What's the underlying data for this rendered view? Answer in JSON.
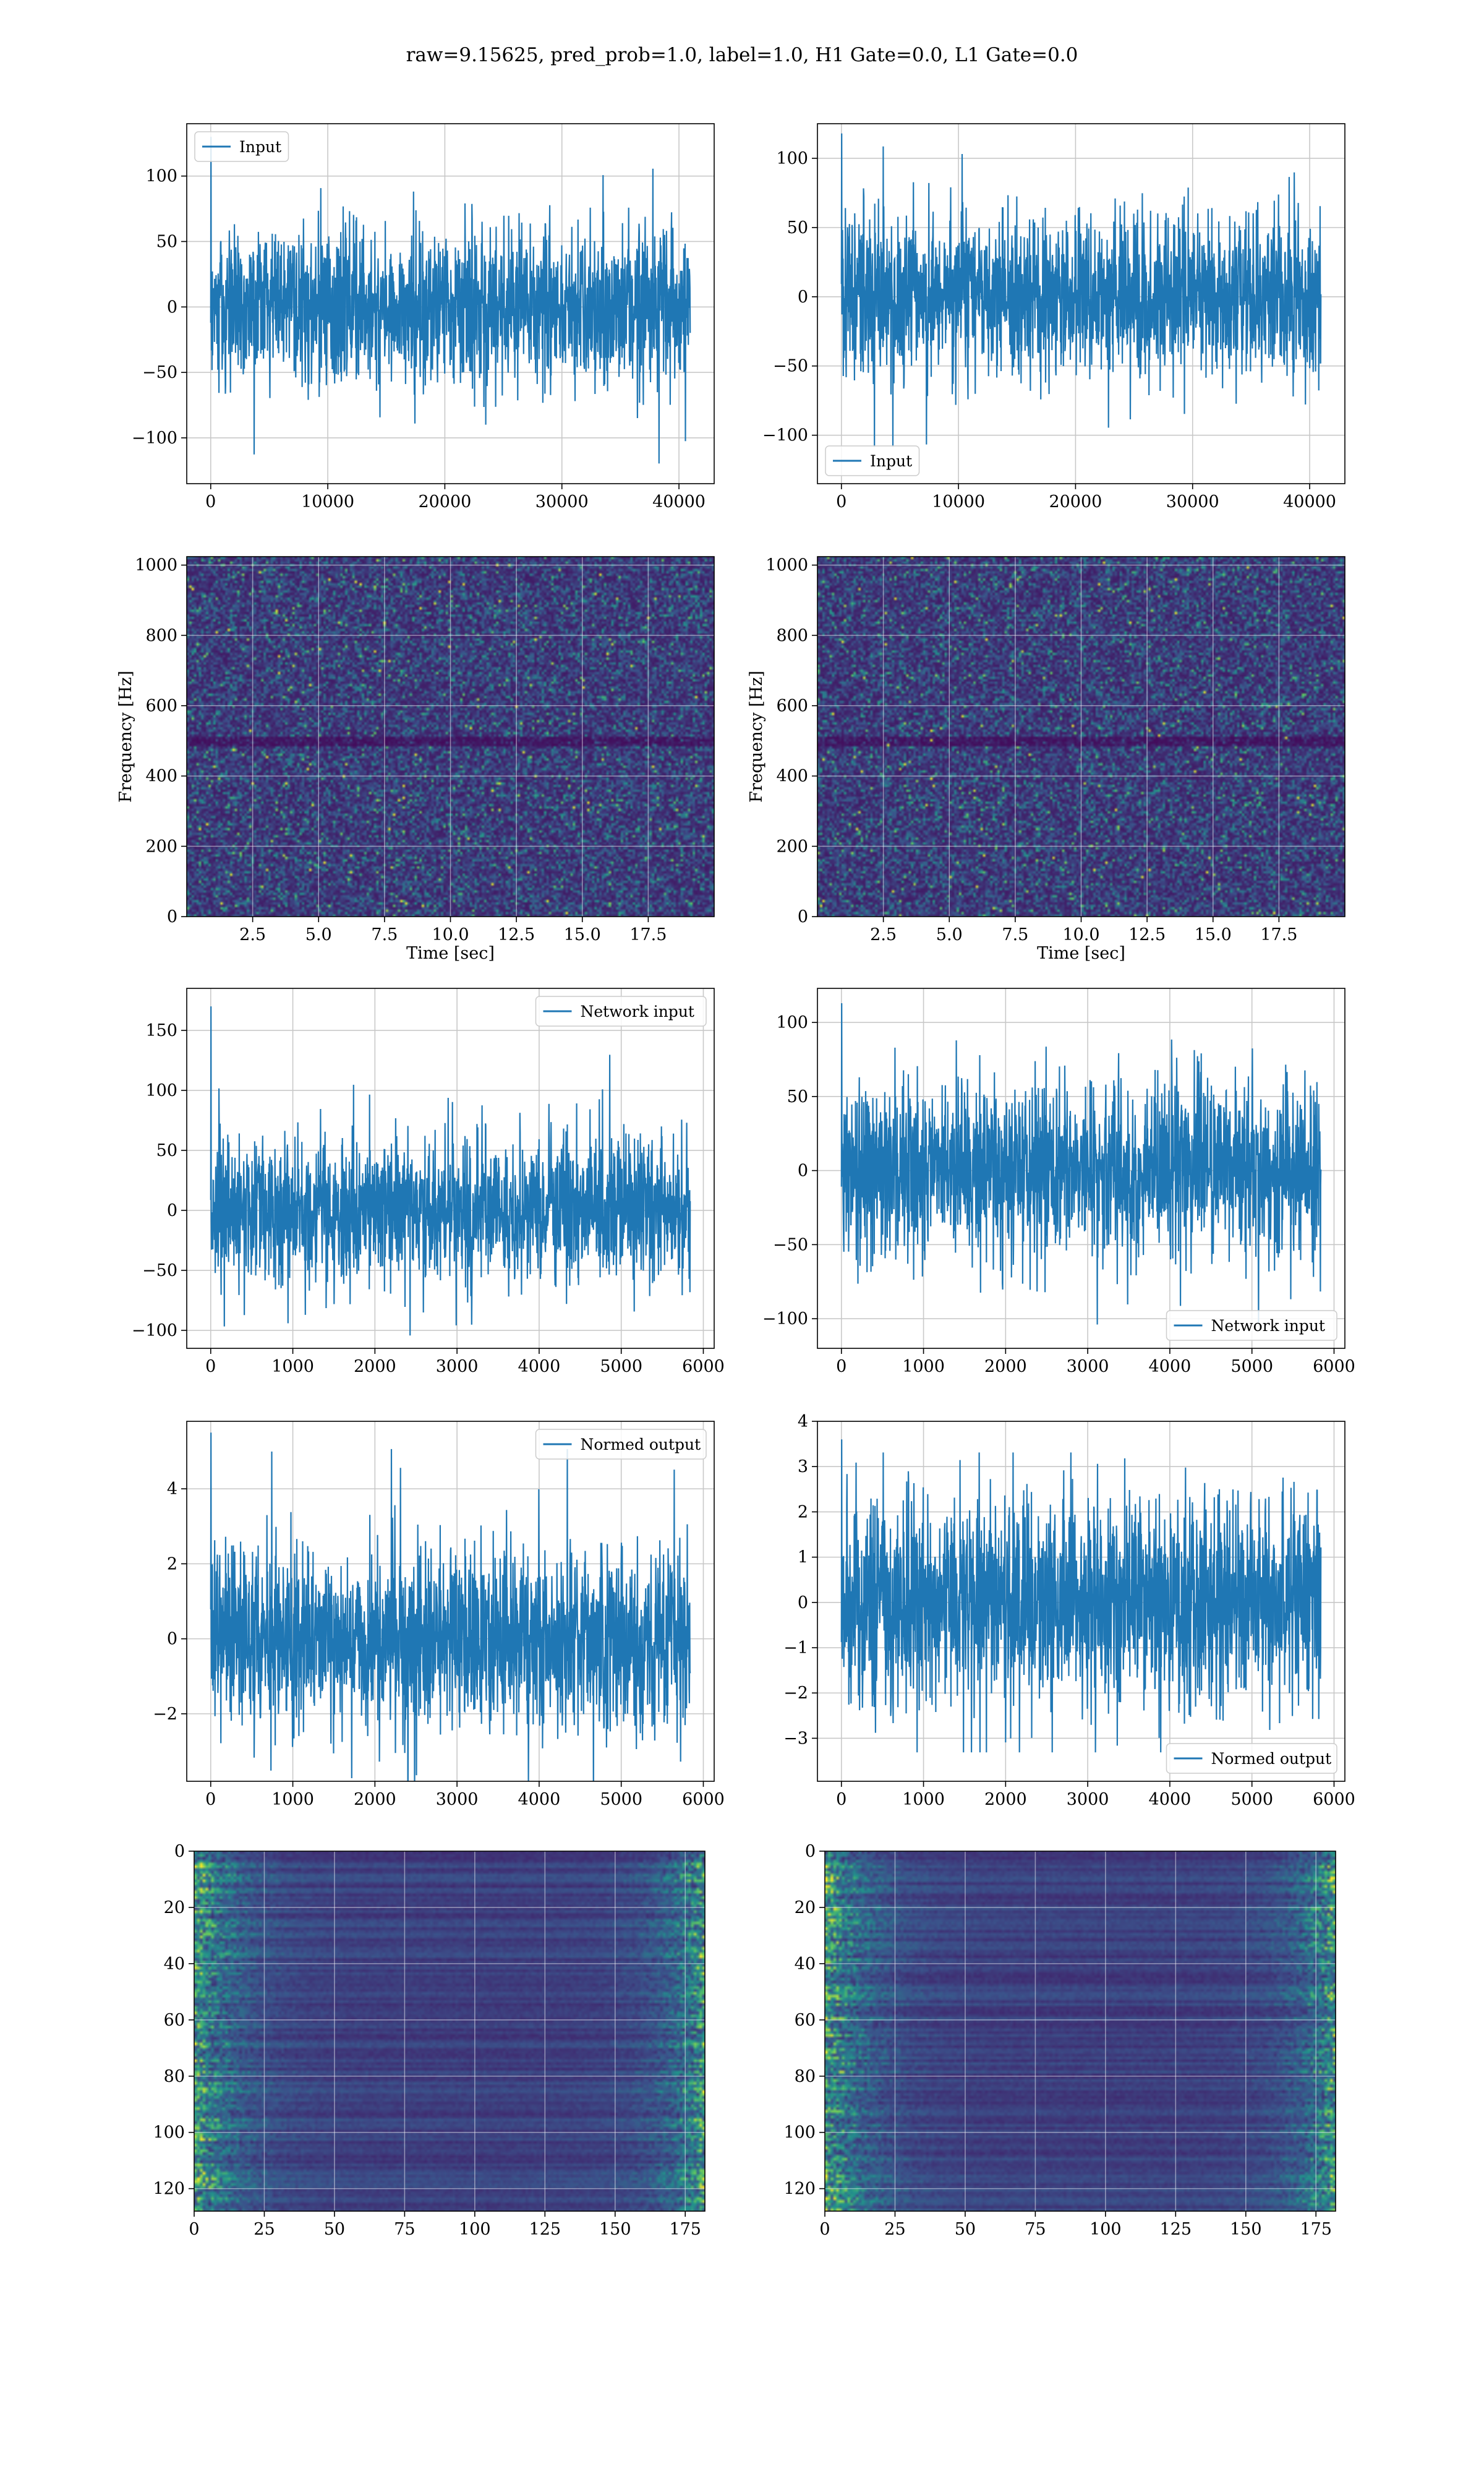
{
  "figure": {
    "suptitle": "raw=9.15625, pred_prob=1.0, label=1.0, H1 Gate=0.0, L1 Gate=0.0",
    "colors": {
      "series": "#1f77b4",
      "heatmap_low": "#440154",
      "heatmap_mid": "#21918c",
      "heatmap_high": "#fde725"
    }
  },
  "chart_data": [
    {
      "id": "input-h1",
      "type": "line",
      "title": "",
      "xlabel": "",
      "ylabel": "",
      "legend": [
        "Input"
      ],
      "legend_loc": "upper left",
      "series": [
        {
          "name": "Input",
          "n": 40960,
          "mean": 0,
          "std": 25,
          "peak": 130
        }
      ],
      "xlim": [
        -2048,
        43008
      ],
      "ylim": [
        -135,
        140
      ],
      "xticks": [
        0,
        10000,
        20000,
        30000,
        40000
      ],
      "xtick_labels": [
        "0",
        "10000",
        "20000",
        "30000",
        "40000"
      ],
      "yticks": [
        -100,
        -50,
        0,
        50,
        100
      ],
      "ytick_labels": [
        "−100",
        "−50",
        "0",
        "50",
        "100"
      ],
      "grid": true
    },
    {
      "id": "input-l1",
      "type": "line",
      "title": "",
      "xlabel": "",
      "ylabel": "",
      "legend": [
        "Input"
      ],
      "legend_loc": "lower left",
      "series": [
        {
          "name": "Input",
          "n": 40960,
          "mean": 0,
          "std": 25,
          "peak": 118
        }
      ],
      "xlim": [
        -2048,
        43008
      ],
      "ylim": [
        -135,
        125
      ],
      "xticks": [
        0,
        10000,
        20000,
        30000,
        40000
      ],
      "xtick_labels": [
        "0",
        "10000",
        "20000",
        "30000",
        "40000"
      ],
      "yticks": [
        -100,
        -50,
        0,
        50,
        100
      ],
      "ytick_labels": [
        "−100",
        "−50",
        "0",
        "50",
        "100"
      ],
      "grid": true
    },
    {
      "id": "spec-h1",
      "type": "heatmap",
      "title": "",
      "xlabel": "Time [sec]",
      "ylabel": "Frequency [Hz]",
      "xlim": [
        0,
        20
      ],
      "ylim": [
        0,
        1024
      ],
      "colormap": "viridis",
      "xticks": [
        2.5,
        5.0,
        7.5,
        10.0,
        12.5,
        15.0,
        17.5
      ],
      "xtick_labels": [
        "2.5",
        "5.0",
        "7.5",
        "10.0",
        "12.5",
        "15.0",
        "17.5"
      ],
      "yticks": [
        0,
        200,
        400,
        600,
        800,
        1000
      ],
      "ytick_labels": [
        "0",
        "200",
        "400",
        "600",
        "800",
        "1000"
      ],
      "grid": true
    },
    {
      "id": "spec-l1",
      "type": "heatmap",
      "title": "",
      "xlabel": "Time [sec]",
      "ylabel": "Frequency [Hz]",
      "xlim": [
        0,
        20
      ],
      "ylim": [
        0,
        1024
      ],
      "colormap": "viridis",
      "xticks": [
        2.5,
        5.0,
        7.5,
        10.0,
        12.5,
        15.0,
        17.5
      ],
      "xtick_labels": [
        "2.5",
        "5.0",
        "7.5",
        "10.0",
        "12.5",
        "15.0",
        "17.5"
      ],
      "yticks": [
        0,
        200,
        400,
        600,
        800,
        1000
      ],
      "ytick_labels": [
        "0",
        "200",
        "400",
        "600",
        "800",
        "1000"
      ],
      "grid": true
    },
    {
      "id": "netin-h1",
      "type": "line",
      "title": "",
      "xlabel": "",
      "ylabel": "",
      "legend": [
        "Network input"
      ],
      "legend_loc": "upper right",
      "series": [
        {
          "name": "Network input",
          "n": 5840,
          "mean": 0,
          "std": 25,
          "peak": 170
        }
      ],
      "xlim": [
        -292,
        6132
      ],
      "ylim": [
        -115,
        185
      ],
      "xticks": [
        0,
        1000,
        2000,
        3000,
        4000,
        5000,
        6000
      ],
      "xtick_labels": [
        "0",
        "1000",
        "2000",
        "3000",
        "4000",
        "5000",
        "6000"
      ],
      "yticks": [
        -100,
        -50,
        0,
        50,
        100,
        150
      ],
      "ytick_labels": [
        "−100",
        "−50",
        "0",
        "50",
        "100",
        "150"
      ],
      "grid": true
    },
    {
      "id": "netin-l1",
      "type": "line",
      "title": "",
      "xlabel": "",
      "ylabel": "",
      "legend": [
        "Network input"
      ],
      "legend_loc": "lower right",
      "series": [
        {
          "name": "Network input",
          "n": 5840,
          "mean": 0,
          "std": 25,
          "peak": 113
        }
      ],
      "xlim": [
        -292,
        6132
      ],
      "ylim": [
        -120,
        123
      ],
      "xticks": [
        0,
        1000,
        2000,
        3000,
        4000,
        5000,
        6000
      ],
      "xtick_labels": [
        "0",
        "1000",
        "2000",
        "3000",
        "4000",
        "5000",
        "6000"
      ],
      "yticks": [
        -100,
        -50,
        0,
        50,
        100
      ],
      "ytick_labels": [
        "−100",
        "−50",
        "0",
        "50",
        "100"
      ],
      "grid": true
    },
    {
      "id": "normed-h1",
      "type": "line",
      "title": "",
      "xlabel": "",
      "ylabel": "",
      "legend": [
        "Normed output"
      ],
      "legend_loc": "upper right",
      "series": [
        {
          "name": "Normed output",
          "n": 5840,
          "mean": 0,
          "std": 1,
          "peak": 5.5
        }
      ],
      "xlim": [
        -292,
        6132
      ],
      "ylim": [
        -3.8,
        5.8
      ],
      "xticks": [
        0,
        1000,
        2000,
        3000,
        4000,
        5000,
        6000
      ],
      "xtick_labels": [
        "0",
        "1000",
        "2000",
        "3000",
        "4000",
        "5000",
        "6000"
      ],
      "yticks": [
        -2,
        0,
        2,
        4
      ],
      "ytick_labels": [
        "−2",
        "0",
        "2",
        "4"
      ],
      "grid": true
    },
    {
      "id": "normed-l1",
      "type": "line",
      "title": "",
      "xlabel": "",
      "ylabel": "",
      "legend": [
        "Normed output"
      ],
      "legend_loc": "lower right",
      "series": [
        {
          "name": "Normed output",
          "n": 5840,
          "mean": 0,
          "std": 1,
          "peak": 3.6
        }
      ],
      "xlim": [
        -292,
        6132
      ],
      "ylim": [
        -3.95,
        4.0
      ],
      "xticks": [
        0,
        1000,
        2000,
        3000,
        4000,
        5000,
        6000
      ],
      "xtick_labels": [
        "0",
        "1000",
        "2000",
        "3000",
        "4000",
        "5000",
        "6000"
      ],
      "yticks": [
        -3,
        -2,
        -1,
        0,
        1,
        2,
        3,
        4
      ],
      "ytick_labels": [
        "−3",
        "−2",
        "−1",
        "0",
        "1",
        "2",
        "3",
        "4"
      ],
      "grid": true
    },
    {
      "id": "feat-h1",
      "type": "heatmap",
      "title": "",
      "xlabel": "",
      "ylabel": "",
      "xlim": [
        0,
        182
      ],
      "ylim": [
        128,
        0
      ],
      "colormap": "viridis",
      "xticks": [
        0,
        25,
        50,
        75,
        100,
        125,
        150,
        175
      ],
      "xtick_labels": [
        "0",
        "25",
        "50",
        "75",
        "100",
        "125",
        "150",
        "175"
      ],
      "yticks": [
        0,
        20,
        40,
        60,
        80,
        100,
        120
      ],
      "ytick_labels": [
        "0",
        "20",
        "40",
        "60",
        "80",
        "100",
        "120"
      ],
      "grid": true
    },
    {
      "id": "feat-l1",
      "type": "heatmap",
      "title": "",
      "xlabel": "",
      "ylabel": "",
      "xlim": [
        0,
        182
      ],
      "ylim": [
        128,
        0
      ],
      "colormap": "viridis",
      "xticks": [
        0,
        25,
        50,
        75,
        100,
        125,
        150,
        175
      ],
      "xtick_labels": [
        "0",
        "25",
        "50",
        "75",
        "100",
        "125",
        "150",
        "175"
      ],
      "yticks": [
        0,
        20,
        40,
        60,
        80,
        100,
        120
      ],
      "ytick_labels": [
        "0",
        "20",
        "40",
        "60",
        "80",
        "100",
        "120"
      ],
      "grid": true
    }
  ]
}
